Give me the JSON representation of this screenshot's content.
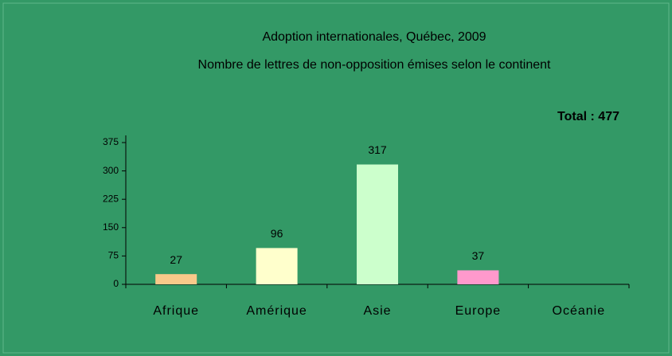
{
  "chart_data": {
    "type": "bar",
    "title": "Adoption internationales, Québec, 2009",
    "subtitle": "Nombre de lettres de non-opposition émises selon le continent",
    "annotation": "Total : 477",
    "categories": [
      "Afrique",
      "Amérique",
      "Asie",
      "Europe",
      "Océanie"
    ],
    "values": [
      27,
      96,
      317,
      37,
      0
    ],
    "colors": [
      "#f9c98a",
      "#ffffcc",
      "#ccffcc",
      "#ff99cc",
      "#9999ff"
    ],
    "background": "#339966",
    "ylim": [
      0,
      375
    ],
    "yticks": [
      0,
      75,
      150,
      225,
      300,
      375
    ],
    "grid": false
  }
}
